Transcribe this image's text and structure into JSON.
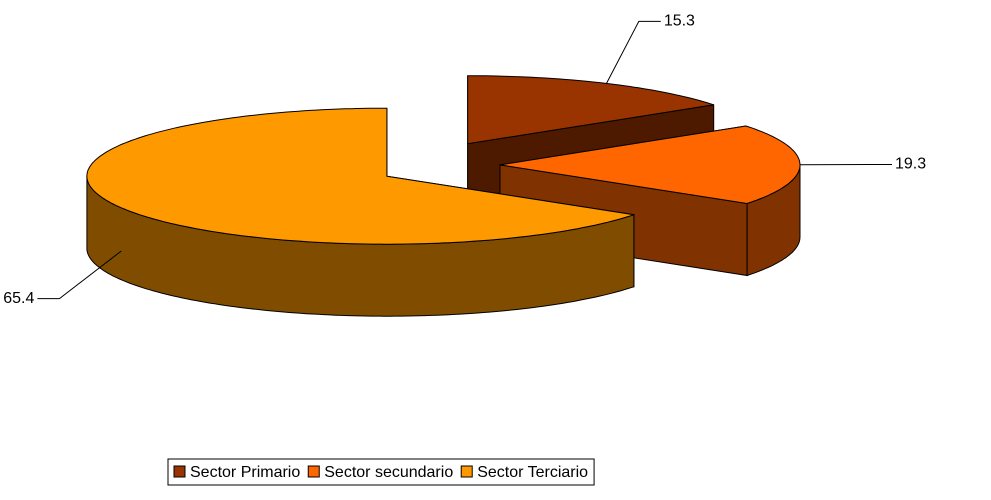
{
  "chart_data": {
    "type": "pie",
    "three_d": true,
    "exploded": true,
    "categories": [
      "Sector Primario",
      "Sector secundario",
      "Sector Terciario"
    ],
    "values": [
      15.3,
      19.3,
      65.4
    ],
    "colors": [
      "#993300",
      "#FF6600",
      "#FF9900"
    ],
    "legend": "bottom"
  }
}
